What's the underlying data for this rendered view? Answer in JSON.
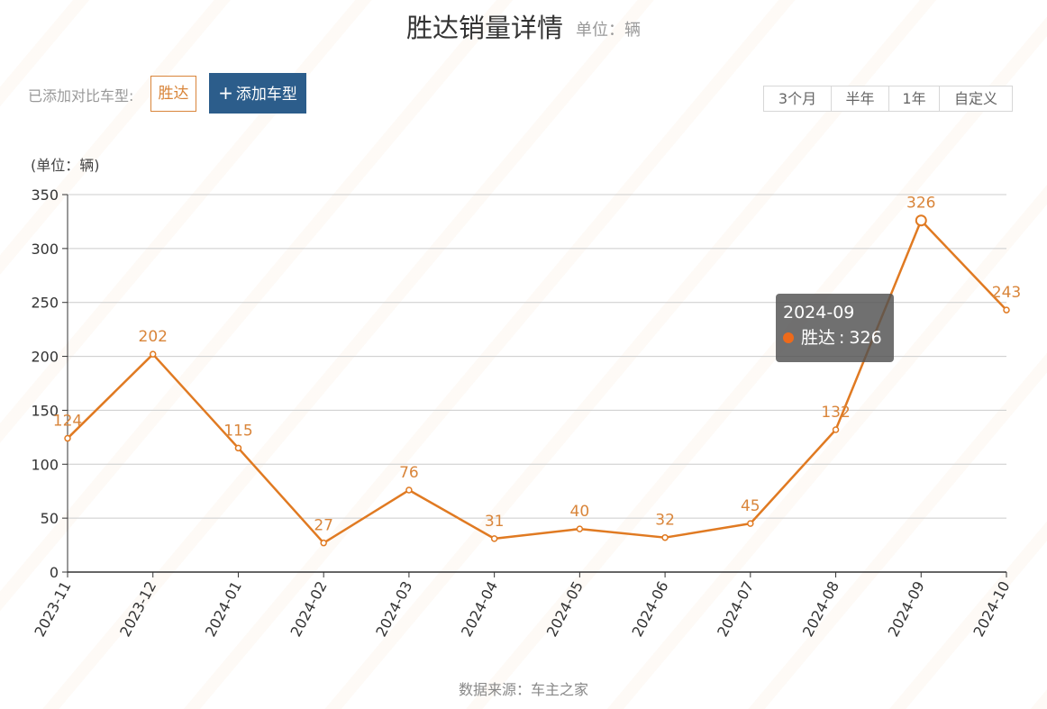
{
  "header": {
    "title": "胜达销量详情",
    "unit": "单位：辆"
  },
  "compare": {
    "label": "已添加对比车型:",
    "car": "胜达",
    "add_button": "添加车型"
  },
  "ranges": [
    {
      "label": "3个月",
      "active": false
    },
    {
      "label": "半年",
      "active": false
    },
    {
      "label": "1年",
      "active": true
    },
    {
      "label": "自定义",
      "active": false
    }
  ],
  "tooltip": {
    "date": "2024-09",
    "series": "胜达",
    "value": "326"
  },
  "source": "数据来源：车主之家",
  "chart_data": {
    "type": "line",
    "ylabel": "(单位：辆)",
    "ylim": [
      0,
      350
    ],
    "yticks": [
      0,
      50,
      100,
      150,
      200,
      250,
      300,
      350
    ],
    "categories": [
      "2023-11",
      "2023-12",
      "2024-01",
      "2024-02",
      "2024-03",
      "2024-04",
      "2024-05",
      "2024-06",
      "2024-07",
      "2024-08",
      "2024-09",
      "2024-10"
    ],
    "series": [
      {
        "name": "胜达",
        "values": [
          124,
          202,
          115,
          27,
          76,
          31,
          40,
          32,
          45,
          132,
          326,
          243
        ]
      }
    ],
    "highlight_index": 10,
    "grid": true,
    "colors": {
      "line": "#e07a22",
      "label": "#d9853a",
      "grid": "#cccccc",
      "axis": "#333333"
    }
  }
}
